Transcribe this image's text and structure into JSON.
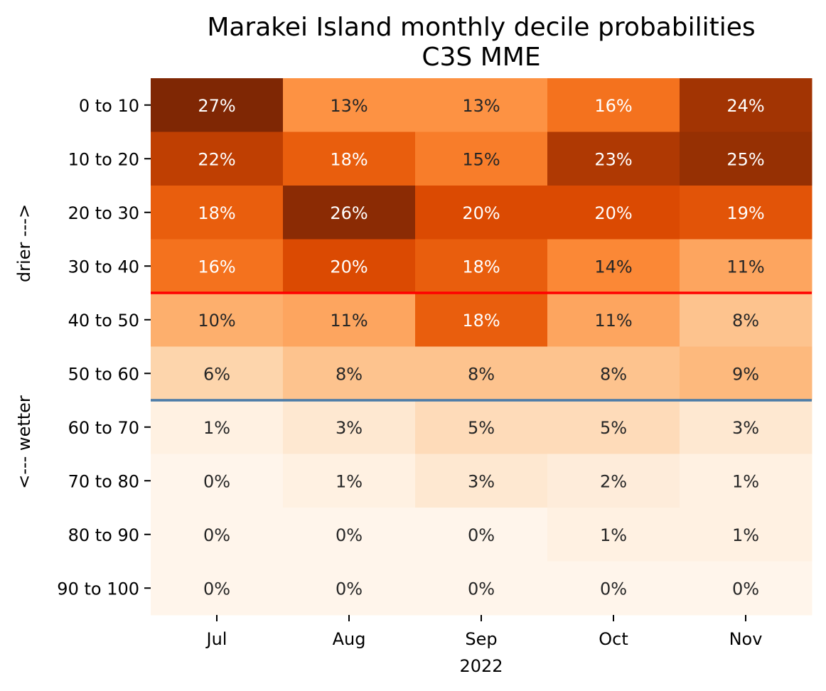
{
  "chart_data": {
    "type": "heatmap",
    "title": [
      "Marakei Island monthly decile probabilities",
      "C3S MME"
    ],
    "xlabel": "2022",
    "ylabel_upper": "drier --->",
    "ylabel_lower": "<--- wetter",
    "columns": [
      "Jul",
      "Aug",
      "Sep",
      "Oct",
      "Nov"
    ],
    "rows": [
      "0 to 10",
      "10 to 20",
      "20 to 30",
      "30 to 40",
      "40 to 50",
      "50 to 60",
      "60 to 70",
      "70 to 80",
      "80 to 90",
      "90 to 100"
    ],
    "values": [
      [
        27,
        13,
        13,
        16,
        24
      ],
      [
        22,
        18,
        15,
        23,
        25
      ],
      [
        18,
        26,
        20,
        20,
        19
      ],
      [
        16,
        20,
        18,
        14,
        11
      ],
      [
        10,
        11,
        18,
        11,
        8
      ],
      [
        6,
        8,
        8,
        8,
        9
      ],
      [
        1,
        3,
        5,
        5,
        3
      ],
      [
        0,
        1,
        3,
        2,
        1
      ],
      [
        0,
        0,
        0,
        1,
        1
      ],
      [
        0,
        0,
        0,
        0,
        0
      ]
    ],
    "value_suffix": "%",
    "colormap": "Oranges",
    "color_range": [
      0,
      27
    ],
    "reference_lines": [
      {
        "after_row": "30 to 40",
        "color": "#ff0000"
      },
      {
        "after_row": "50 to 60",
        "color": "#4a7ba8"
      }
    ],
    "grid": false,
    "colorbar": false
  }
}
